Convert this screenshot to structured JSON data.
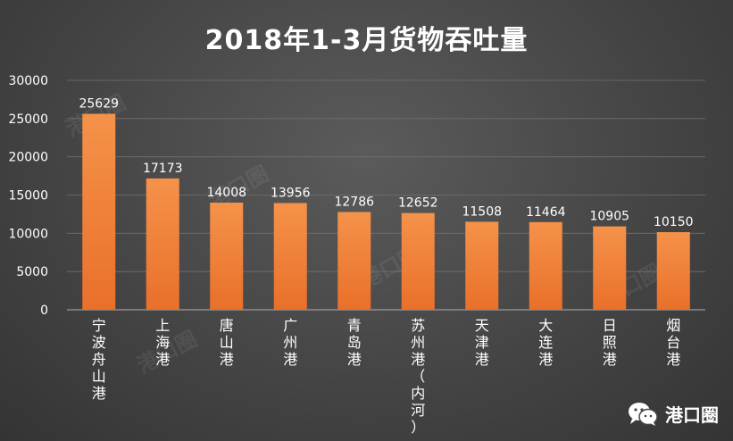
{
  "chart_data": {
    "type": "bar",
    "title": "2018年1-3月货物吞吐量",
    "categories": [
      "宁波舟山港",
      "上海港",
      "唐山港",
      "广州港",
      "青岛港",
      "苏州港（内河）",
      "天津港",
      "大连港",
      "日照港",
      "烟台港"
    ],
    "values": [
      25629,
      17173,
      14008,
      13956,
      12786,
      12652,
      11508,
      11464,
      10905,
      10150
    ],
    "ylim": [
      0,
      30000
    ],
    "yticks": [
      0,
      5000,
      10000,
      15000,
      20000,
      25000,
      30000
    ],
    "grid": true,
    "legend": "none",
    "xlabel": "",
    "ylabel": "",
    "colors": {
      "bar_top": "#f5924a",
      "bar_bottom": "#e9702a",
      "gridline": "#707070",
      "text": "#ffffff",
      "background": "#474747"
    }
  },
  "watermark": "港口圈",
  "footer": {
    "brand": "港口圈",
    "icon": "wechat-icon"
  }
}
